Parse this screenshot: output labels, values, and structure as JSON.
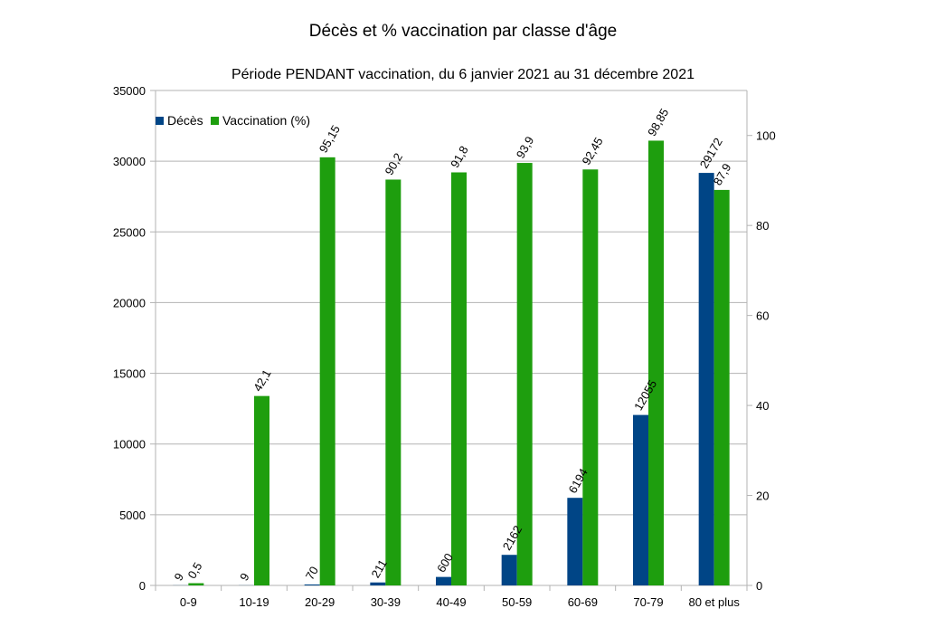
{
  "chart_data": {
    "type": "bar",
    "title": "Décès et % vaccination par classe d'âge",
    "subtitle": "Période PENDANT vaccination, du 6 janvier 2021 au 31 décembre 2021",
    "categories": [
      "0-9",
      "10-19",
      "20-29",
      "30-39",
      "40-49",
      "50-59",
      "60-69",
      "70-79",
      "80 et plus"
    ],
    "series": [
      {
        "name": "Décès",
        "axis": "left",
        "color": "#004586",
        "values": [
          9,
          9,
          70,
          211,
          600,
          2162,
          6194,
          12055,
          29172
        ],
        "labels": [
          "9",
          "9",
          "70",
          "211",
          "600",
          "2162",
          "6194",
          "12055",
          "29172"
        ]
      },
      {
        "name": "Vaccination (%)",
        "axis": "right",
        "color": "#1e9e0e",
        "values": [
          0.5,
          42.1,
          95.15,
          90.2,
          91.8,
          93.9,
          92.45,
          98.85,
          87.9
        ],
        "labels": [
          "0,5",
          "42,1",
          "95,15",
          "90,2",
          "91,8",
          "93,9",
          "92,45",
          "98,85",
          "87,9"
        ]
      }
    ],
    "y_left": {
      "min": 0,
      "max": 35000,
      "ticks": [
        "0",
        "5000",
        "10000",
        "15000",
        "20000",
        "25000",
        "30000",
        "35000"
      ]
    },
    "y_right": {
      "min": 0,
      "max": 110,
      "ticks": [
        "0",
        "20",
        "40",
        "60",
        "80",
        "100"
      ]
    },
    "grid": true,
    "legend_position": "top-left"
  }
}
